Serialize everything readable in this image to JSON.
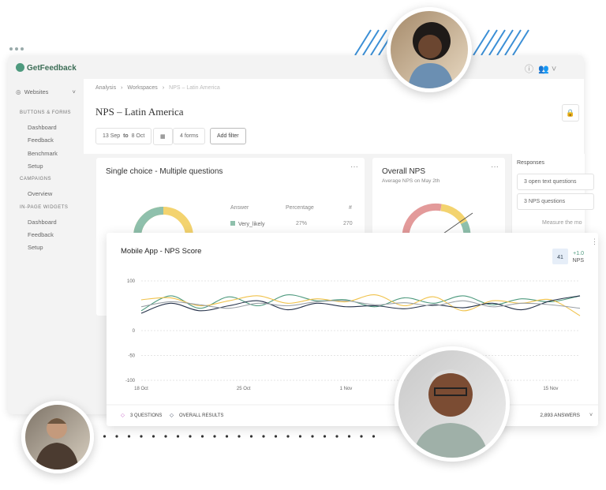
{
  "app": {
    "brand": "GetFeedback",
    "site": "Websites",
    "sidebar": [
      {
        "title": "BUTTONS & FORMS",
        "items": [
          "Dashboard",
          "Feedback",
          "Benchmark",
          "Setup"
        ]
      },
      {
        "title": "CAMPAIGNS",
        "items": [
          "Overview"
        ]
      },
      {
        "title": "IN-PAGE WIDGETS",
        "items": [
          "Dashboard",
          "Feedback",
          "Setup"
        ]
      }
    ],
    "breadcrumb": [
      "Analysis",
      "Workspaces",
      "NPS – Latin America"
    ],
    "page_title": "NPS – Latin America",
    "filters": {
      "date_from": "13 Sep",
      "to": "to",
      "date_to": "8 Oct",
      "forms": "4 forms",
      "add_filter": "Add filter"
    },
    "single_choice": {
      "title": "Single choice - Multiple questions",
      "headers": [
        "Answer",
        "Percentage",
        "#"
      ],
      "row": [
        "Very_likely",
        "27%",
        "270"
      ]
    },
    "overall_nps": {
      "title": "Overall NPS",
      "subtitle": "Average NPS on May 2th"
    },
    "responses": {
      "title": "Responses",
      "items": [
        "3 open text questions",
        "3 NPS questions"
      ],
      "note": "Measure the mo"
    }
  },
  "chart_card": {
    "badge": "41",
    "change": "+1.0",
    "badge_label": "NPS",
    "legend": [
      "3 QUESTIONS",
      "OVERALL RESULTS"
    ],
    "answers": "2,893 ANSWERS"
  },
  "chart_data": {
    "type": "line",
    "title": "Mobile App - NPS Score",
    "x": [
      0,
      2,
      4,
      6,
      8,
      10,
      12,
      14,
      16,
      18,
      20,
      22,
      24,
      26,
      28,
      30
    ],
    "xlim": [
      0,
      30
    ],
    "xticks": [
      {
        "value": 0,
        "label": "18 Oct"
      },
      {
        "value": 7,
        "label": "25 Oct"
      },
      {
        "value": 14,
        "label": "1 Nov"
      },
      {
        "value": 28,
        "label": "15 Nov"
      }
    ],
    "ylim": [
      -100,
      100
    ],
    "yticks": [
      100,
      0,
      -50,
      -100
    ],
    "grid": true,
    "series": [
      {
        "color": "#4e9a7e",
        "values": [
          40,
          70,
          45,
          68,
          50,
          72,
          60,
          62,
          48,
          66,
          55,
          70,
          52,
          64,
          58,
          70
        ]
      },
      {
        "color": "#f0c24b",
        "values": [
          62,
          66,
          50,
          60,
          70,
          55,
          64,
          58,
          72,
          50,
          68,
          40,
          60,
          55,
          62,
          30
        ]
      },
      {
        "color": "#26324a",
        "values": [
          35,
          55,
          40,
          50,
          60,
          42,
          55,
          48,
          50,
          44,
          52,
          46,
          55,
          42,
          60,
          70
        ]
      },
      {
        "color": "#9aa0a6",
        "values": [
          48,
          58,
          52,
          45,
          55,
          50,
          58,
          60,
          52,
          56,
          50,
          60,
          48,
          55,
          52,
          45
        ]
      }
    ]
  }
}
